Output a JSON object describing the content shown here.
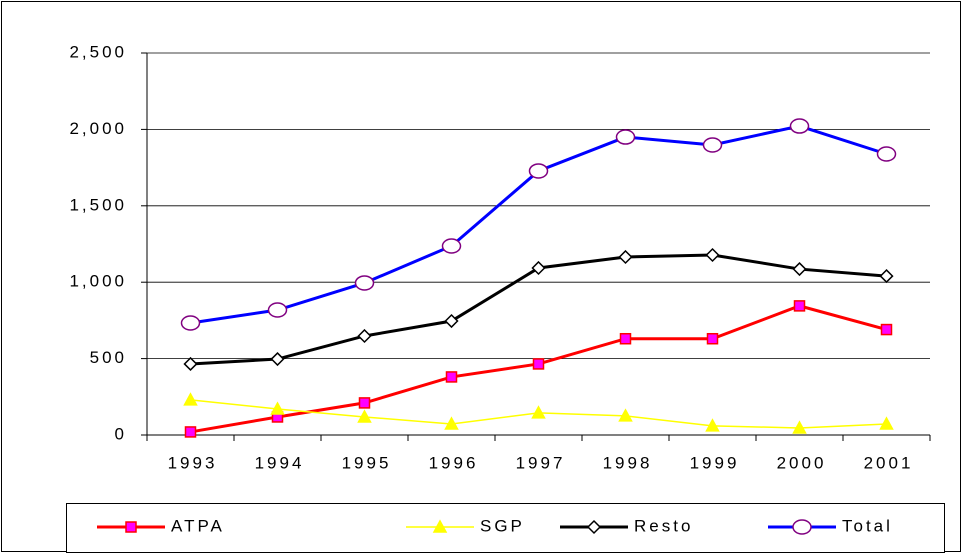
{
  "chart_data": {
    "type": "line",
    "categories": [
      "1993",
      "1994",
      "1995",
      "1996",
      "1997",
      "1998",
      "1999",
      "2000",
      "2001"
    ],
    "series": [
      {
        "name": "ATPA",
        "color": "#ff0000",
        "marker": "square",
        "marker_color": "#ff0000",
        "marker_fill": "#ff00ff",
        "width": 3,
        "values": [
          20,
          118,
          210,
          380,
          465,
          630,
          630,
          845,
          690
        ]
      },
      {
        "name": "SGP",
        "color": "#ffff00",
        "marker": "triangle",
        "marker_color": "#ffff00",
        "marker_fill": "#ffff00",
        "width": 1.5,
        "values": [
          230,
          170,
          118,
          72,
          145,
          125,
          60,
          46,
          72
        ]
      },
      {
        "name": "Resto",
        "color": "#000000",
        "marker": "diamond",
        "marker_color": "#000000",
        "marker_fill": "#ffffff",
        "width": 3,
        "values": [
          465,
          497,
          648,
          746,
          1093,
          1165,
          1178,
          1086,
          1040
        ]
      },
      {
        "name": "Total",
        "color": "#0000ff",
        "marker": "circle",
        "marker_color": "#800080",
        "marker_fill": "#ffffff",
        "width": 3,
        "values": [
          733,
          818,
          995,
          1237,
          1728,
          1950,
          1898,
          2022,
          1839
        ]
      }
    ],
    "ylim": [
      0,
      2500
    ],
    "yticks": [
      0,
      500,
      {
        "value": 1000,
        "label": "1,000"
      },
      {
        "value": 1500,
        "label": "1,500"
      },
      {
        "value": 2000,
        "label": "2,000"
      },
      {
        "value": 2500,
        "label": "2,500"
      }
    ],
    "grid": true,
    "legend": "bottom"
  }
}
